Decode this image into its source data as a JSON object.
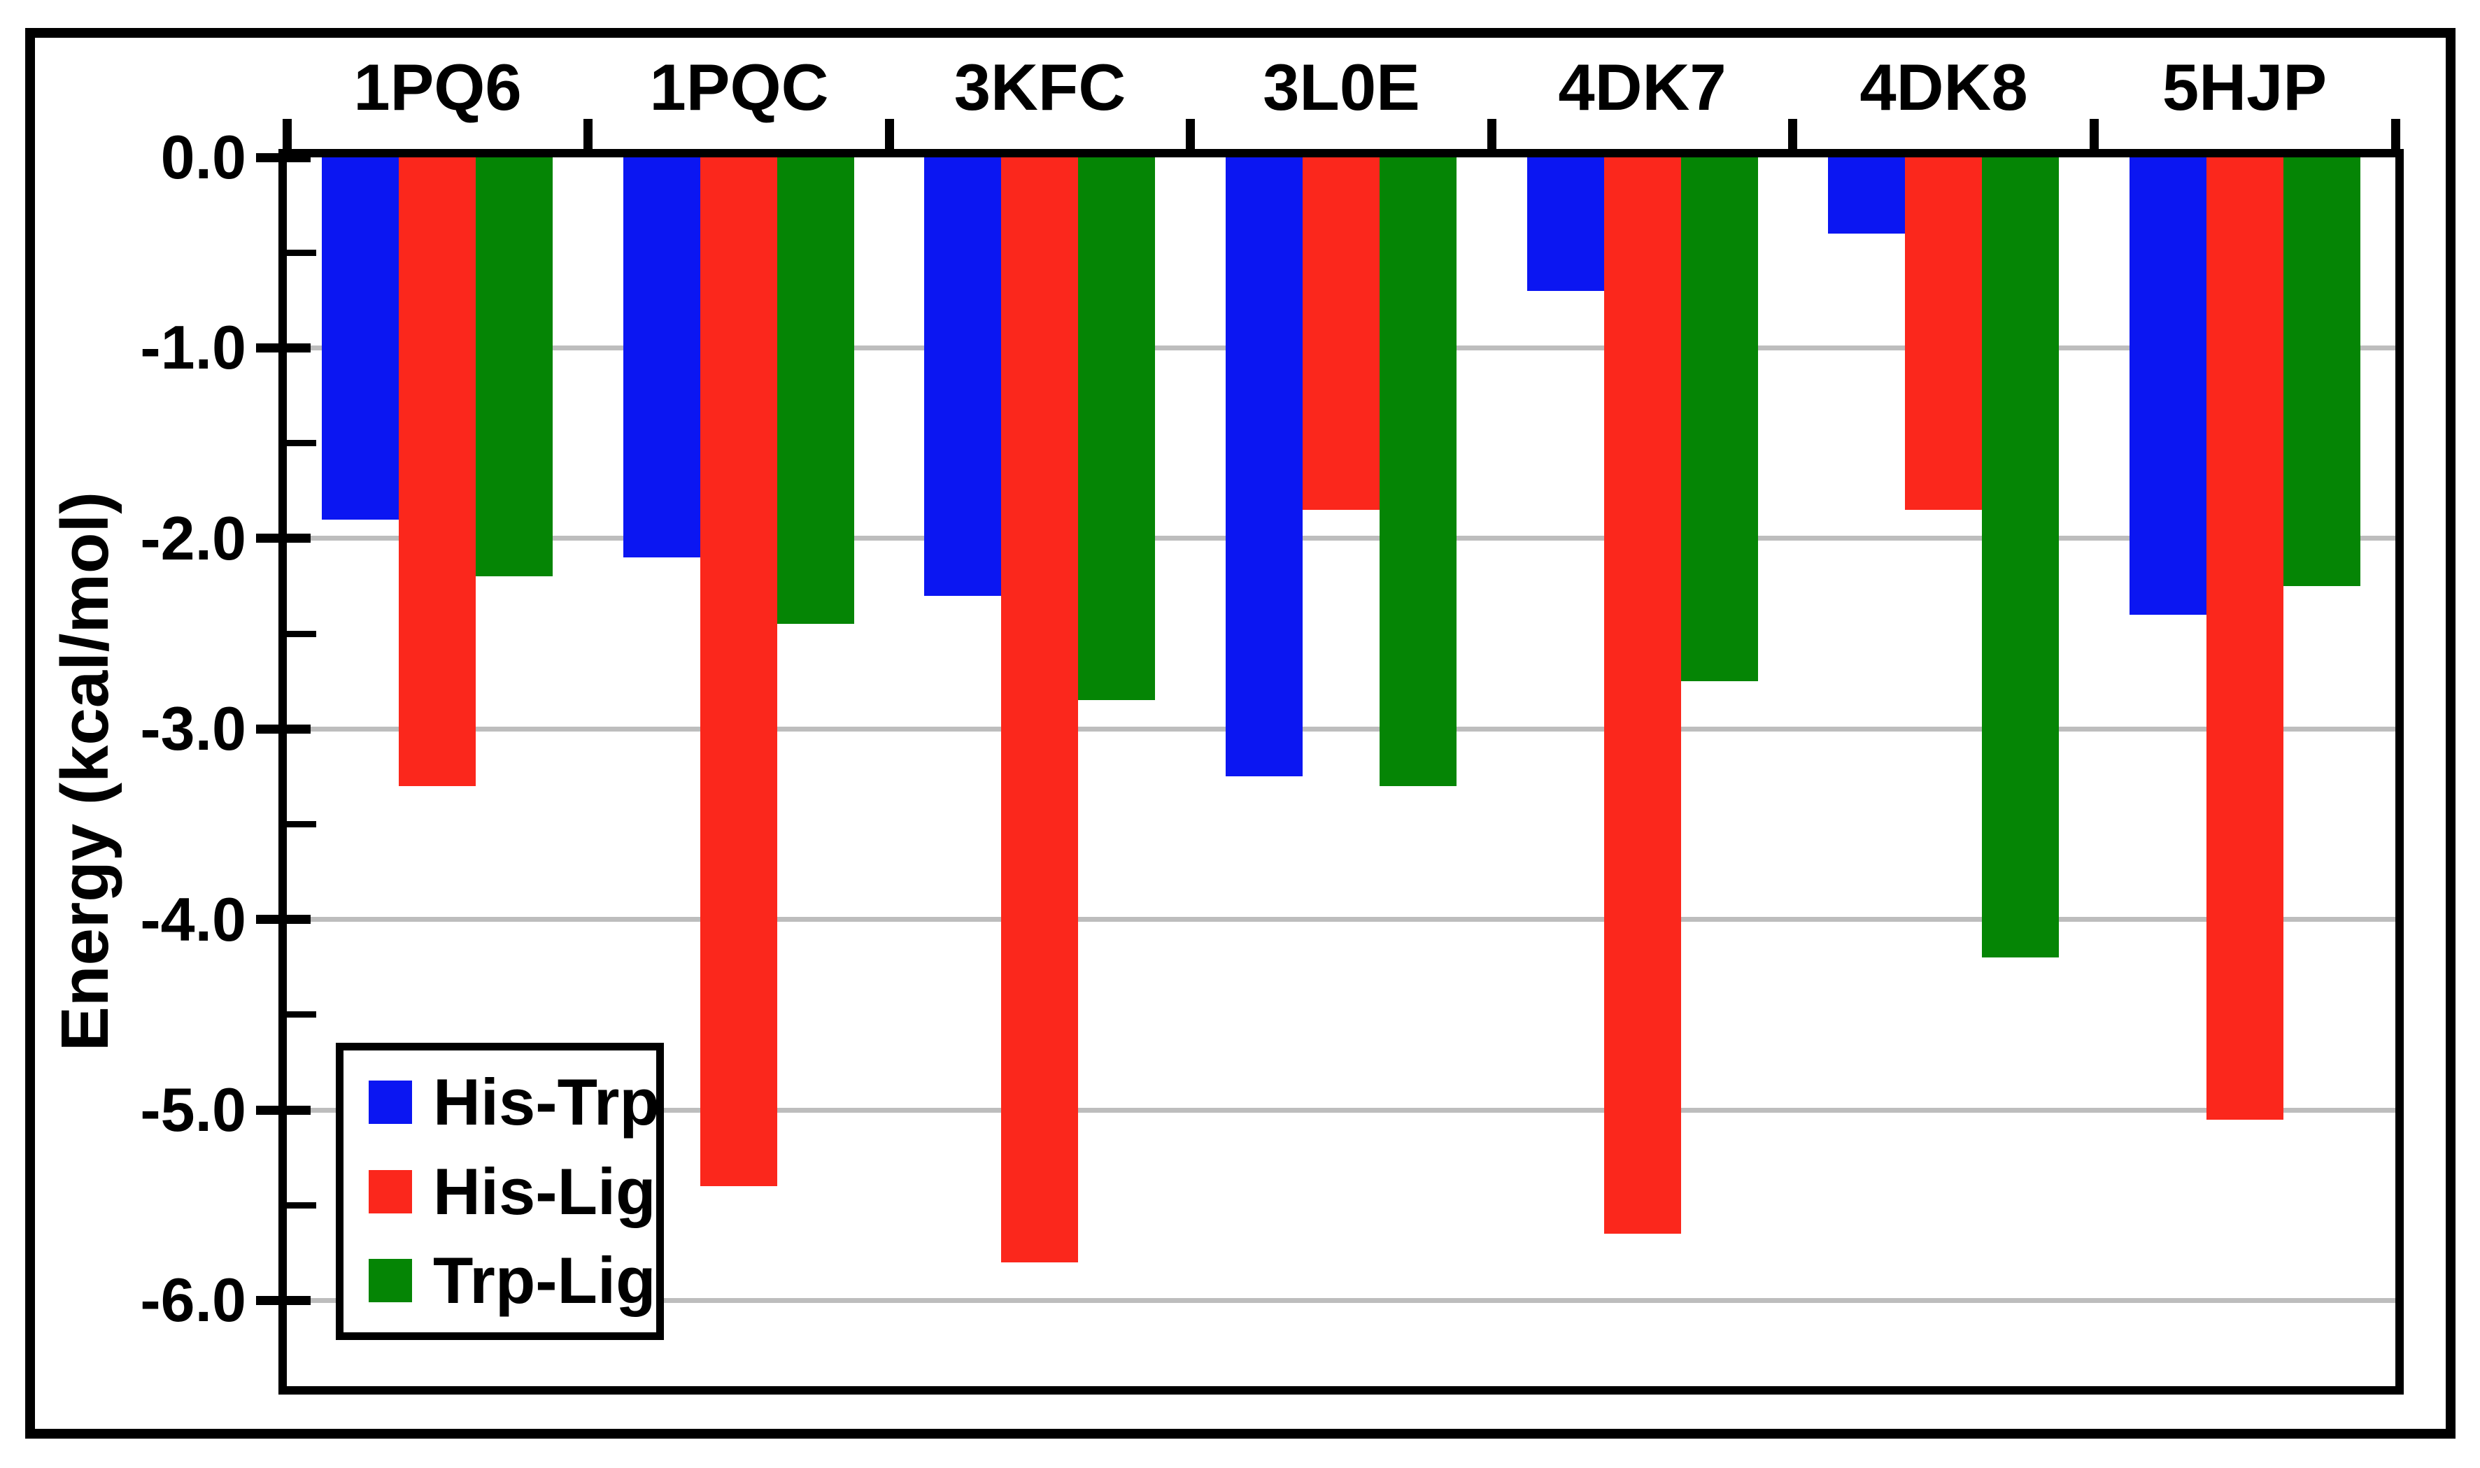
{
  "chart_data": {
    "type": "bar",
    "title": "",
    "orientation": "vertical-negative",
    "categories": [
      "1PQ6",
      "1PQC",
      "3KFC",
      "3L0E",
      "4DK7",
      "4DK8",
      "5HJP"
    ],
    "series": [
      {
        "name": "His-Trp",
        "color": "#0b16f2",
        "values": [
          -1.9,
          -2.1,
          -2.3,
          -3.25,
          -0.7,
          -0.4,
          -2.4
        ]
      },
      {
        "name": "His-Lig",
        "color": "#fb271c",
        "values": [
          -3.3,
          -5.4,
          -5.8,
          -1.85,
          -5.65,
          -1.85,
          -5.05
        ]
      },
      {
        "name": "Trp-Lig",
        "color": "#058505",
        "values": [
          -2.2,
          -2.45,
          -2.85,
          -3.3,
          -2.75,
          -4.2,
          -2.25
        ]
      }
    ],
    "xlabel": "",
    "ylabel": "Energy (kcal/mol)",
    "ylim": [
      -6.45,
      0
    ],
    "y_major_ticks": [
      0,
      -1,
      -2,
      -3,
      -4,
      -5,
      -6
    ],
    "y_major_tick_labels": [
      "0.0",
      "-1.0",
      "-2.0",
      "-3.0",
      "-4.0",
      "-5.0",
      "-6.0"
    ],
    "y_minor_tick_step": 0.5,
    "grid": "horizontal-major",
    "gridline_color": "#bdbdbd",
    "category_label_position": "top",
    "legend": {
      "position": "lower-left"
    }
  }
}
